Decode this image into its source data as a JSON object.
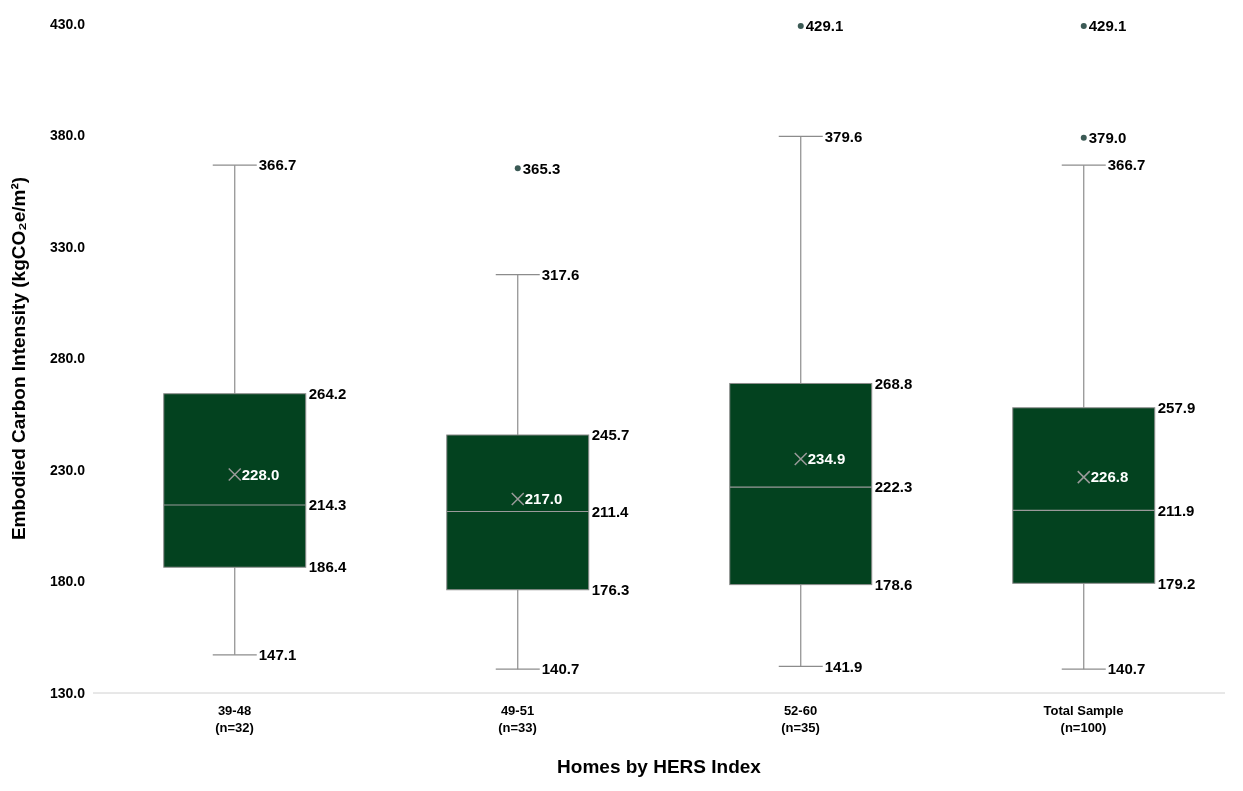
{
  "chart_data": {
    "type": "box",
    "xlabel": "Homes by HERS Index",
    "ylabel": "Embodied Carbon Intensity (kgCO₂e/m²)",
    "categories": [
      "39-48\n(n=32)",
      "49-51\n(n=33)",
      "52-60\n(n=35)",
      "Total Sample\n(n=100)"
    ],
    "series": [
      {
        "color": "#03421f",
        "boxes": [
          {
            "low": 147.1,
            "q1": 186.4,
            "median": 214.3,
            "q3": 264.2,
            "high": 366.7,
            "mean": 228.0
          },
          {
            "low": 140.7,
            "q1": 176.3,
            "median": 211.4,
            "q3": 245.7,
            "high": 317.6,
            "mean": 217.0,
            "outliers": [
              365.3
            ]
          },
          {
            "low": 141.9,
            "q1": 178.6,
            "median": 222.3,
            "q3": 268.8,
            "high": 379.6,
            "mean": 234.9,
            "outliers": [
              429.1
            ]
          },
          {
            "low": 140.7,
            "q1": 179.2,
            "median": 211.9,
            "q3": 257.9,
            "high": 366.7,
            "mean": 226.8,
            "outliers": [
              429.1,
              379.0
            ]
          }
        ]
      }
    ],
    "ylim": [
      130,
      430
    ],
    "yticks": [
      {
        "value": 130,
        "label": "130.0"
      },
      {
        "value": 180,
        "label": "180.0"
      },
      {
        "value": 230,
        "label": "230.0"
      },
      {
        "value": 280,
        "label": "280.0"
      },
      {
        "value": 330,
        "label": "330.0"
      },
      {
        "value": 380,
        "label": "380.0"
      },
      {
        "value": 430,
        "label": "430.0"
      }
    ],
    "annotations": [
      "366.7",
      "264.2",
      "228.0",
      "214.3",
      "186.4",
      "147.1",
      "365.3",
      "317.6",
      "245.7",
      "217.0",
      "211.4",
      "176.3",
      "140.7",
      "429.1",
      "379.6",
      "268.8",
      "234.9",
      "222.3",
      "178.6",
      "141.9",
      "429.1",
      "379.0",
      "366.7",
      "257.9",
      "226.8",
      "211.9",
      "179.2",
      "140.7"
    ],
    "grid": false,
    "legend": false
  }
}
